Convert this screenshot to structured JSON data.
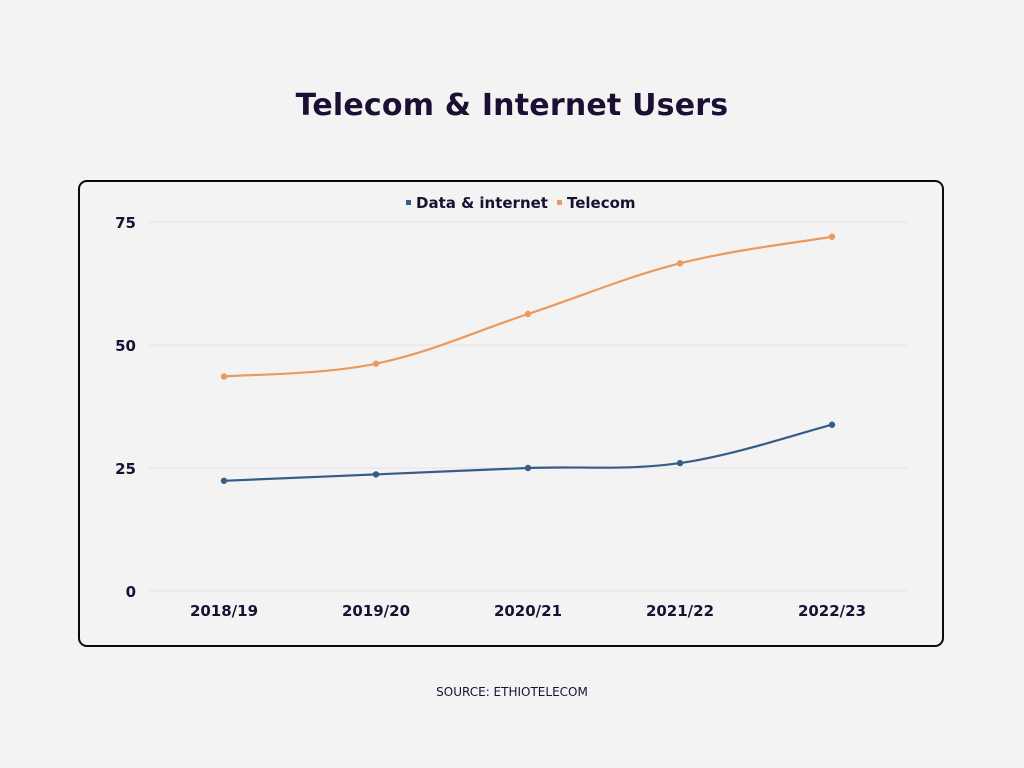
{
  "title": "Telecom & Internet Users",
  "source": "SOURCE: ETHIOTELECOM",
  "colors": {
    "background": "#f4f3f4",
    "text": "#1b1033",
    "gridline": "#e6e4e6",
    "data_internet": "#355d86",
    "telecom": "#e99a5c"
  },
  "chart_data": {
    "type": "line",
    "categories": [
      "2018/19",
      "2019/20",
      "2020/21",
      "2021/22",
      "2022/23"
    ],
    "series": [
      {
        "name": "Data & internet",
        "color": "#355d86",
        "values": [
          22.4,
          23.7,
          25.0,
          26.0,
          33.8
        ]
      },
      {
        "name": "Telecom",
        "color": "#e99a5c",
        "values": [
          43.6,
          46.2,
          56.3,
          66.6,
          72.0
        ]
      }
    ],
    "yticks": [
      0,
      25,
      50,
      75
    ],
    "ylim": [
      0,
      75
    ],
    "grid": true,
    "legend_position": "top-center",
    "title": "",
    "xlabel": "",
    "ylabel": ""
  }
}
